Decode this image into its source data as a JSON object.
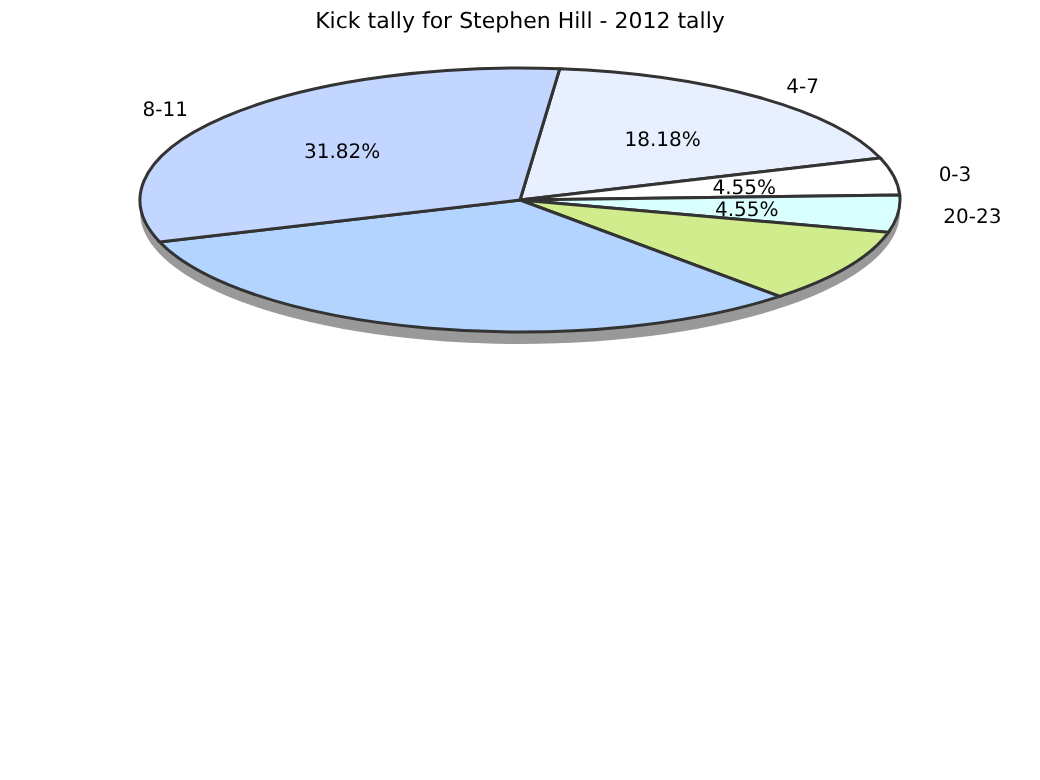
{
  "chart_data": {
    "type": "pie",
    "title": "Kick tally for Stephen Hill - 2012 tally",
    "categories": [
      "4-7",
      "0-3",
      "20-23",
      null,
      null,
      "8-11"
    ],
    "values": [
      18.18,
      4.55,
      4.55,
      9.09,
      31.82,
      31.82
    ],
    "colors": [
      "#e8f0ff",
      "#ffffff",
      "#d9ffff",
      "#d0ec8c",
      "#b3d4ff",
      "#c2d6ff"
    ],
    "value_labels": [
      "18.18%",
      "4.55%",
      "4.55%",
      null,
      null,
      "31.82%"
    ]
  }
}
